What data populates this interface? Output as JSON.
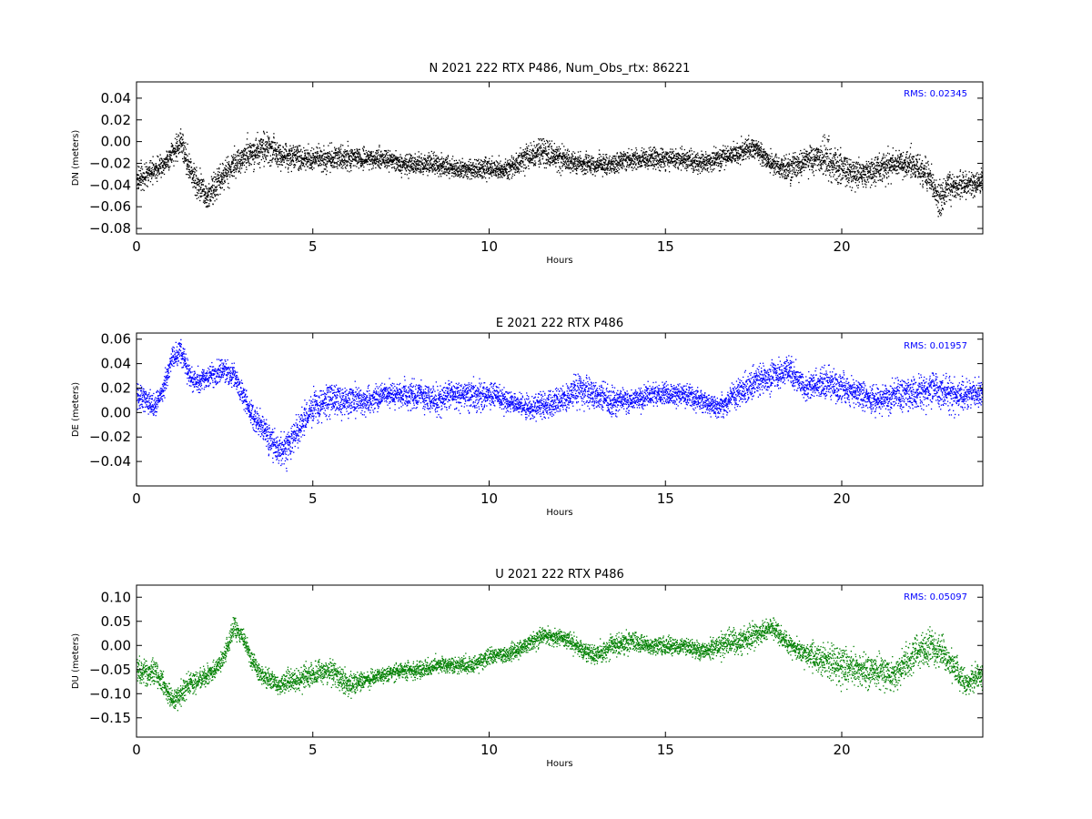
{
  "figure": {
    "background": "#ffffff"
  },
  "chart_data": [
    {
      "type": "scatter",
      "title": "N 2021 222 RTX  P486, Num_Obs_rtx: 86221",
      "xlabel": "Hours",
      "ylabel": "DN (meters)",
      "xlim": [
        0,
        24
      ],
      "ylim": [
        -0.085,
        0.055
      ],
      "xticks": [
        0,
        5,
        10,
        15,
        20
      ],
      "xtick_labels": [
        "0",
        "5",
        "10",
        "15",
        "20"
      ],
      "yticks": [
        0.04,
        0.02,
        0.0,
        -0.02,
        -0.04,
        -0.06,
        -0.08
      ],
      "ytick_labels": [
        "0.04",
        "0.02",
        "0.00",
        "−0.02",
        "−0.04",
        "−0.06",
        "−0.08"
      ],
      "grid": false,
      "annotation": "RMS:  0.02345",
      "annotation_color": "#0000ff",
      "series": [
        {
          "color": "#000000",
          "x": [
            0.0,
            0.25,
            0.5,
            0.75,
            1.0,
            1.25,
            1.5,
            1.75,
            2.0,
            2.25,
            2.5,
            2.75,
            3.0,
            3.25,
            3.5,
            3.75,
            4.0,
            4.5,
            5.0,
            5.5,
            6.0,
            6.5,
            7.0,
            7.5,
            8.0,
            8.5,
            9.0,
            9.5,
            10.0,
            10.5,
            11.0,
            11.5,
            12.0,
            12.5,
            13.0,
            13.5,
            14.0,
            14.5,
            15.0,
            15.5,
            16.0,
            16.5,
            17.0,
            17.5,
            18.0,
            18.5,
            19.0,
            19.5,
            20.0,
            20.5,
            21.0,
            21.5,
            22.0,
            22.5,
            22.75,
            23.0,
            23.5,
            24.0
          ],
          "y": [
            -0.035,
            -0.03,
            -0.025,
            -0.02,
            -0.01,
            0.0,
            -0.025,
            -0.04,
            -0.05,
            -0.04,
            -0.03,
            -0.02,
            -0.015,
            -0.01,
            -0.005,
            -0.005,
            -0.01,
            -0.015,
            -0.015,
            -0.015,
            -0.015,
            -0.015,
            -0.015,
            -0.02,
            -0.02,
            -0.02,
            -0.025,
            -0.025,
            -0.025,
            -0.025,
            -0.015,
            -0.01,
            -0.015,
            -0.02,
            -0.02,
            -0.02,
            -0.015,
            -0.015,
            -0.015,
            -0.015,
            -0.02,
            -0.015,
            -0.01,
            -0.005,
            -0.02,
            -0.025,
            -0.015,
            -0.015,
            -0.025,
            -0.03,
            -0.025,
            -0.02,
            -0.02,
            -0.035,
            -0.055,
            -0.04,
            -0.04,
            -0.035
          ],
          "spread": [
            0.014,
            0.014,
            0.014,
            0.014,
            0.014,
            0.016,
            0.018,
            0.018,
            0.018,
            0.018,
            0.016,
            0.016,
            0.018,
            0.02,
            0.02,
            0.018,
            0.016,
            0.014,
            0.014,
            0.014,
            0.014,
            0.012,
            0.012,
            0.012,
            0.012,
            0.012,
            0.012,
            0.012,
            0.012,
            0.012,
            0.014,
            0.016,
            0.014,
            0.012,
            0.012,
            0.012,
            0.012,
            0.012,
            0.012,
            0.012,
            0.012,
            0.012,
            0.012,
            0.012,
            0.012,
            0.014,
            0.018,
            0.022,
            0.02,
            0.016,
            0.016,
            0.016,
            0.018,
            0.018,
            0.02,
            0.016,
            0.014,
            0.014
          ]
        }
      ]
    },
    {
      "type": "scatter",
      "title": "E 2021 222 RTX  P486",
      "xlabel": "Hours",
      "ylabel": "DE (meters)",
      "xlim": [
        0,
        24
      ],
      "ylim": [
        -0.06,
        0.065
      ],
      "xticks": [
        0,
        5,
        10,
        15,
        20
      ],
      "xtick_labels": [
        "0",
        "5",
        "10",
        "15",
        "20"
      ],
      "yticks": [
        0.06,
        0.04,
        0.02,
        0.0,
        -0.02,
        -0.04
      ],
      "ytick_labels": [
        "0.06",
        "0.04",
        "0.02",
        "0.00",
        "−0.02",
        "−0.04"
      ],
      "grid": false,
      "annotation": "RMS:  0.01957",
      "annotation_color": "#0000ff",
      "series": [
        {
          "color": "#0000ff",
          "x": [
            0.0,
            0.25,
            0.5,
            0.75,
            1.0,
            1.25,
            1.5,
            1.75,
            2.0,
            2.5,
            2.75,
            3.0,
            3.25,
            3.5,
            3.75,
            4.0,
            4.25,
            4.5,
            5.0,
            5.5,
            6.0,
            6.5,
            7.0,
            7.5,
            8.0,
            8.5,
            9.0,
            9.5,
            10.0,
            10.5,
            11.0,
            11.5,
            12.0,
            12.5,
            13.0,
            13.5,
            14.0,
            14.5,
            15.0,
            15.5,
            16.0,
            16.5,
            17.0,
            17.5,
            18.0,
            18.5,
            19.0,
            19.5,
            20.0,
            20.5,
            21.0,
            21.5,
            22.0,
            22.5,
            23.0,
            23.5,
            24.0
          ],
          "y": [
            0.015,
            0.01,
            0.005,
            0.02,
            0.045,
            0.05,
            0.03,
            0.025,
            0.03,
            0.035,
            0.03,
            0.015,
            0.0,
            -0.01,
            -0.02,
            -0.03,
            -0.03,
            -0.015,
            0.005,
            0.01,
            0.01,
            0.01,
            0.015,
            0.015,
            0.015,
            0.01,
            0.015,
            0.015,
            0.015,
            0.01,
            0.005,
            0.005,
            0.01,
            0.02,
            0.015,
            0.01,
            0.01,
            0.015,
            0.015,
            0.015,
            0.01,
            0.005,
            0.015,
            0.025,
            0.03,
            0.035,
            0.02,
            0.025,
            0.02,
            0.015,
            0.01,
            0.015,
            0.015,
            0.02,
            0.015,
            0.015,
            0.015
          ],
          "spread": [
            0.014,
            0.014,
            0.012,
            0.012,
            0.012,
            0.012,
            0.012,
            0.012,
            0.012,
            0.012,
            0.012,
            0.012,
            0.012,
            0.014,
            0.016,
            0.016,
            0.016,
            0.016,
            0.016,
            0.016,
            0.014,
            0.014,
            0.014,
            0.014,
            0.014,
            0.014,
            0.014,
            0.014,
            0.014,
            0.012,
            0.012,
            0.014,
            0.016,
            0.018,
            0.016,
            0.014,
            0.012,
            0.012,
            0.012,
            0.012,
            0.012,
            0.012,
            0.014,
            0.014,
            0.014,
            0.014,
            0.014,
            0.016,
            0.016,
            0.014,
            0.014,
            0.016,
            0.018,
            0.018,
            0.018,
            0.016,
            0.016
          ]
        }
      ]
    },
    {
      "type": "scatter",
      "title": "U 2021 222 RTX  P486",
      "xlabel": "Hours",
      "ylabel": "DU (meters)",
      "xlim": [
        0,
        24
      ],
      "ylim": [
        -0.19,
        0.125
      ],
      "xticks": [
        0,
        5,
        10,
        15,
        20
      ],
      "xtick_labels": [
        "0",
        "5",
        "10",
        "15",
        "20"
      ],
      "yticks": [
        0.1,
        0.05,
        0.0,
        -0.05,
        -0.1,
        -0.15
      ],
      "ytick_labels": [
        "0.10",
        "0.05",
        "0.00",
        "−0.05",
        "−0.10",
        "−0.15"
      ],
      "grid": false,
      "annotation": "RMS:  0.05097",
      "annotation_color": "#0000ff",
      "series": [
        {
          "color": "#008000",
          "x": [
            0.0,
            0.25,
            0.5,
            0.75,
            1.0,
            1.25,
            1.5,
            2.0,
            2.25,
            2.5,
            2.75,
            3.0,
            3.25,
            3.5,
            4.0,
            4.5,
            5.0,
            5.5,
            6.0,
            6.5,
            7.0,
            7.5,
            8.0,
            8.5,
            9.0,
            9.5,
            10.0,
            10.5,
            11.0,
            11.5,
            12.0,
            12.5,
            13.0,
            13.5,
            14.0,
            14.5,
            15.0,
            15.5,
            16.0,
            16.5,
            17.0,
            17.5,
            18.0,
            18.5,
            19.0,
            19.5,
            20.0,
            20.5,
            21.0,
            21.5,
            22.0,
            22.5,
            23.0,
            23.5,
            24.0
          ],
          "y": [
            -0.05,
            -0.06,
            -0.05,
            -0.08,
            -0.11,
            -0.1,
            -0.08,
            -0.06,
            -0.05,
            -0.02,
            0.04,
            0.02,
            -0.03,
            -0.06,
            -0.08,
            -0.07,
            -0.06,
            -0.05,
            -0.08,
            -0.07,
            -0.06,
            -0.05,
            -0.05,
            -0.04,
            -0.04,
            -0.04,
            -0.02,
            -0.02,
            0.0,
            0.02,
            0.02,
            0.0,
            -0.02,
            0.0,
            0.01,
            0.0,
            0.0,
            0.0,
            -0.01,
            0.0,
            0.01,
            0.02,
            0.04,
            0.0,
            -0.02,
            -0.03,
            -0.04,
            -0.05,
            -0.05,
            -0.06,
            -0.02,
            0.0,
            -0.03,
            -0.08,
            -0.06
          ],
          "spread": [
            0.035,
            0.035,
            0.032,
            0.03,
            0.03,
            0.03,
            0.028,
            0.026,
            0.026,
            0.026,
            0.026,
            0.026,
            0.026,
            0.026,
            0.026,
            0.03,
            0.035,
            0.035,
            0.03,
            0.024,
            0.022,
            0.022,
            0.022,
            0.022,
            0.022,
            0.022,
            0.022,
            0.022,
            0.022,
            0.022,
            0.022,
            0.024,
            0.026,
            0.028,
            0.026,
            0.022,
            0.022,
            0.022,
            0.024,
            0.03,
            0.034,
            0.03,
            0.026,
            0.026,
            0.03,
            0.04,
            0.05,
            0.045,
            0.04,
            0.04,
            0.045,
            0.045,
            0.04,
            0.035,
            0.035
          ]
        }
      ]
    }
  ]
}
